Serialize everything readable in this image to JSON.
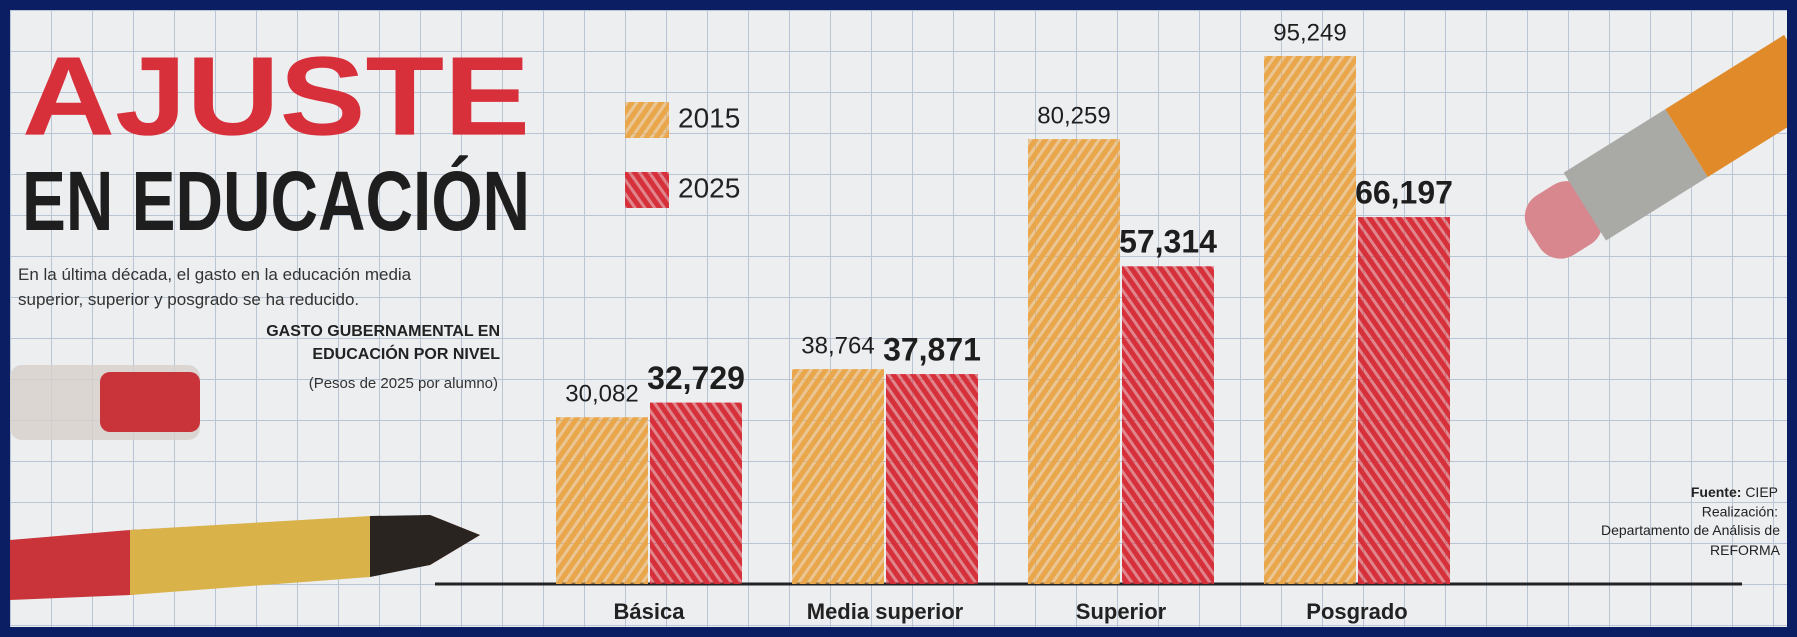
{
  "chart_data": {
    "type": "bar",
    "title": "AJUSTE",
    "subtitle": "EN EDUCACIÓN",
    "description": "En la última década, el gasto en la educación media superior, superior y posgrado se ha reducido.",
    "chart_label": "GASTO GUBERNAMENTAL EN EDUCACIÓN POR NIVEL",
    "units": "(Pesos de 2025 por alumno)",
    "source_label": "Fuente:",
    "source": "CIEP",
    "credit_label": "Realización:",
    "credit": "Departamento de Análisis de REFORMA",
    "categories": [
      "Básica",
      "Media superior",
      "Superior",
      "Posgrado"
    ],
    "series": [
      {
        "name": "2015",
        "color": "#e9a64a",
        "values": [
          30082,
          38764,
          80259,
          95249
        ],
        "value_labels": [
          "30,082",
          "38,764",
          "80,259",
          "95,249"
        ]
      },
      {
        "name": "2025",
        "color": "#d6303b",
        "values": [
          32729,
          37871,
          57314,
          66197
        ],
        "value_labels": [
          "32,729",
          "37,871",
          "57,314",
          "66,197"
        ]
      }
    ]
  }
}
